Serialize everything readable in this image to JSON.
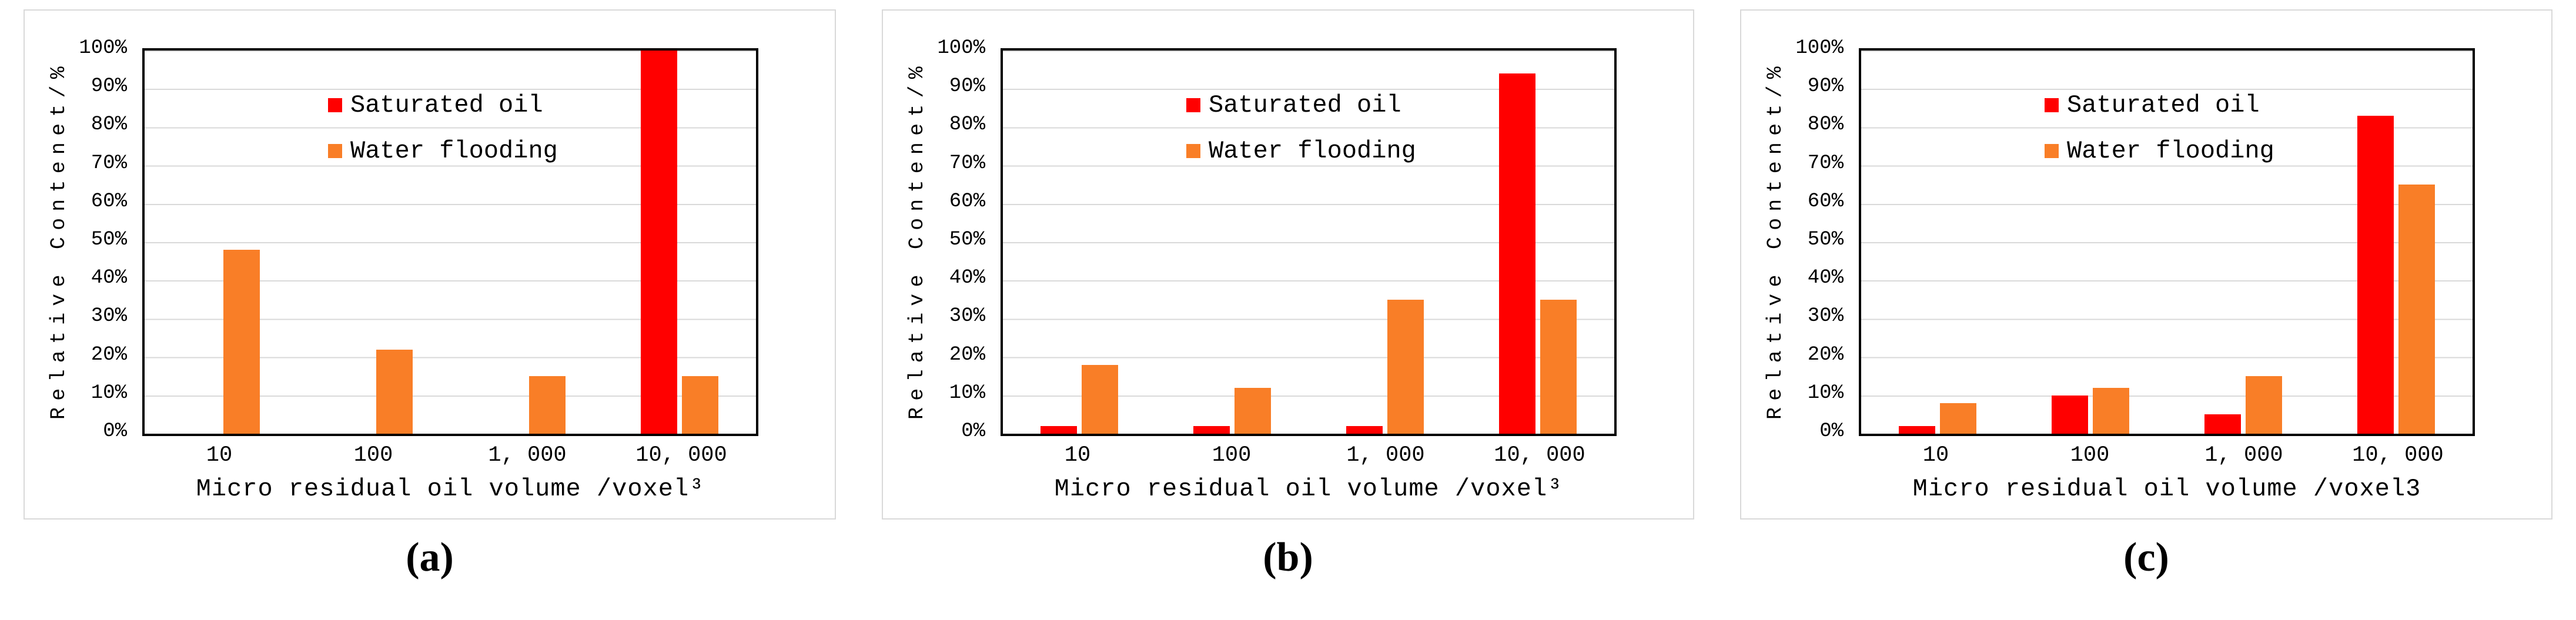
{
  "figure": {
    "background": "#ffffff",
    "panel_border_color": "#d9d9d9",
    "grid_color": "#d9d9d9",
    "axis_color": "#000000"
  },
  "chart_data": [
    {
      "type": "bar",
      "caption": "(a)",
      "xlabel": "Micro residual oil volume /voxel³",
      "ylabel": "Relative Contenet/%",
      "categories": [
        "10",
        "100",
        "1, 000",
        "10, 000"
      ],
      "ylim": [
        0,
        100
      ],
      "y_tick_labels": [
        "0%",
        "10%",
        "20%",
        "30%",
        "40%",
        "50%",
        "60%",
        "70%",
        "80%",
        "90%",
        "100%"
      ],
      "grid": true,
      "legend_position": "inside-upper-left",
      "series": [
        {
          "name": "Saturated oil",
          "color": "#ff0000",
          "values": [
            0,
            0,
            0,
            100
          ]
        },
        {
          "name": "Water flooding",
          "color": "#f97e27",
          "values": [
            48,
            22,
            15,
            15
          ]
        }
      ]
    },
    {
      "type": "bar",
      "caption": "(b)",
      "xlabel": "Micro residual oil volume /voxel³",
      "ylabel": "Relative Contenet/%",
      "categories": [
        "10",
        "100",
        "1, 000",
        "10, 000"
      ],
      "ylim": [
        0,
        100
      ],
      "y_tick_labels": [
        "0%",
        "10%",
        "20%",
        "30%",
        "40%",
        "50%",
        "60%",
        "70%",
        "80%",
        "90%",
        "100%"
      ],
      "grid": true,
      "legend_position": "inside-upper-left",
      "series": [
        {
          "name": "Saturated oil",
          "color": "#ff0000",
          "values": [
            2,
            2,
            2,
            94
          ]
        },
        {
          "name": "Water flooding",
          "color": "#f97e27",
          "values": [
            18,
            12,
            35,
            35
          ]
        }
      ]
    },
    {
      "type": "bar",
      "caption": "(c)",
      "xlabel": "Micro residual oil volume /voxel3",
      "ylabel": "Relative Contenet/%",
      "categories": [
        "10",
        "100",
        "1, 000",
        "10, 000"
      ],
      "ylim": [
        0,
        100
      ],
      "y_tick_labels": [
        "0%",
        "10%",
        "20%",
        "30%",
        "40%",
        "50%",
        "60%",
        "70%",
        "80%",
        "90%",
        "100%"
      ],
      "grid": true,
      "legend_position": "inside-upper-left",
      "series": [
        {
          "name": "Saturated oil",
          "color": "#ff0000",
          "values": [
            2,
            10,
            5,
            83
          ]
        },
        {
          "name": "Water flooding",
          "color": "#f97e27",
          "values": [
            8,
            12,
            15,
            65
          ]
        }
      ]
    }
  ]
}
